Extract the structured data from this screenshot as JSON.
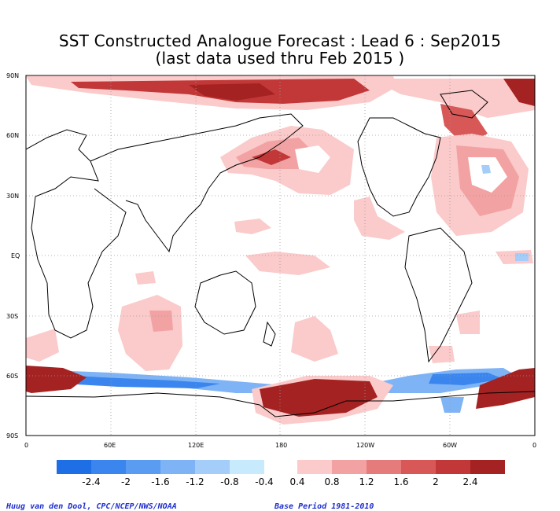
{
  "title": {
    "line1": "SST Constructed Analogue Forecast : Lead 6 : Sep2015",
    "line2": "(last data used thru Feb 2015 )"
  },
  "axes": {
    "lat_labels": [
      "90N",
      "60N",
      "30N",
      "EQ",
      "30S",
      "60S",
      "90S"
    ],
    "lon_labels": [
      "0",
      "60E",
      "120E",
      "180",
      "120W",
      "60W",
      "0"
    ]
  },
  "colorbar": {
    "neg_labels": [
      "-2.4",
      "-2",
      "-1.6",
      "-1.2",
      "-0.8",
      "-0.4"
    ],
    "pos_labels": [
      "0.4",
      "0.8",
      "1.2",
      "1.6",
      "2",
      "2.4"
    ],
    "neg_colors": [
      "#1e6fe6",
      "#3a86ee",
      "#5a9cf2",
      "#7eb3f6",
      "#a4cdf9",
      "#c8eafd"
    ],
    "pos_colors": [
      "#fbcaca",
      "#f2a2a2",
      "#e67b7b",
      "#d85757",
      "#c23838",
      "#a52222"
    ]
  },
  "credits": {
    "left": "Huug van den Dool, CPC/NCEP/NWS/NOAA",
    "right": "Base Period 1981-2010"
  }
}
